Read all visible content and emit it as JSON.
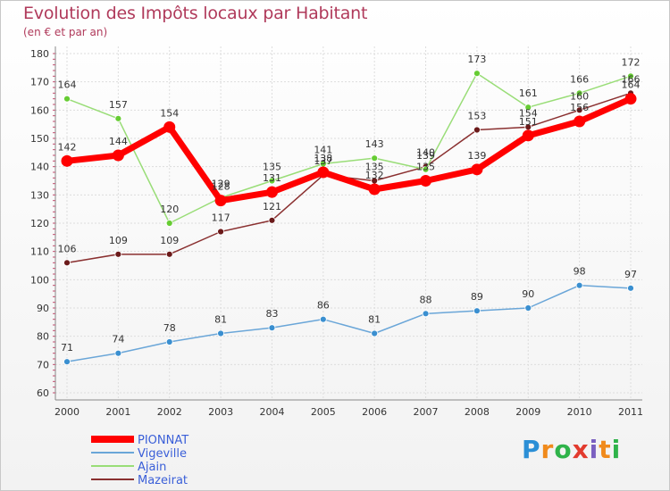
{
  "header": {
    "title": "Evolution des Impôts locaux par Habitant",
    "subtitle": "(en € et par an)"
  },
  "logo": {
    "text": "Proxiti",
    "letters": [
      "P",
      "r",
      "o",
      "x",
      "i",
      "t",
      "i"
    ],
    "colors": [
      "#2b8fd6",
      "#f08a1c",
      "#2fb34a",
      "#e23b2e",
      "#7a5fc0",
      "#f08a1c",
      "#2fb34a"
    ]
  },
  "chart_data": {
    "type": "line",
    "title": "Evolution des Impôts locaux par Habitant",
    "subtitle": "(en € et par an)",
    "xlabel": "",
    "ylabel": "",
    "ylim": [
      60,
      180
    ],
    "yticks": [
      60,
      70,
      80,
      90,
      100,
      110,
      120,
      130,
      140,
      150,
      160,
      170,
      180
    ],
    "grid": true,
    "legend_position": "bottom-left",
    "categories": [
      "2000",
      "2001",
      "2002",
      "2003",
      "2004",
      "2005",
      "2006",
      "2007",
      "2008",
      "2009",
      "2010",
      "2011"
    ],
    "series": [
      {
        "name": "Mazeirat",
        "color": "#6b1a1a",
        "line_color": "#8a3030",
        "values": [
          106,
          109,
          109,
          117,
          121,
          137,
          135,
          140,
          153,
          154,
          160,
          166
        ],
        "labels": [
          "106",
          "109",
          "109",
          "117",
          "121",
          "137",
          "135",
          "140",
          "153",
          "154",
          "160",
          "166"
        ]
      },
      {
        "name": "Ajain",
        "color": "#66cc33",
        "line_color": "#99dd77",
        "values": [
          164,
          157,
          120,
          129,
          135,
          141,
          143,
          139,
          173,
          161,
          166,
          172
        ],
        "labels": [
          "164",
          "157",
          "120",
          "129",
          "135",
          "141",
          "143",
          "139",
          "173",
          "161",
          "166",
          "172"
        ]
      },
      {
        "name": "Vigeville",
        "color": "#3a8fd0",
        "line_color": "#6aa6d8",
        "values": [
          71,
          74,
          78,
          81,
          83,
          86,
          81,
          88,
          89,
          90,
          98,
          97
        ],
        "labels": [
          "71",
          "74",
          "78",
          "81",
          "83",
          "86",
          "81",
          "88",
          "89",
          "90",
          "98",
          "97"
        ]
      },
      {
        "name": "PIONNAT",
        "color": "#ff0000",
        "line_color": "#ff0000",
        "values": [
          142,
          144,
          154,
          128,
          131,
          138,
          132,
          135,
          139,
          151,
          156,
          164
        ],
        "labels": [
          "142",
          "144",
          "154",
          "128",
          "131",
          "138",
          "132",
          "135",
          "139",
          "151",
          "156",
          "164"
        ]
      }
    ],
    "legend": [
      "PIONNAT",
      "Vigeville",
      "Ajain",
      "Mazeirat"
    ]
  }
}
